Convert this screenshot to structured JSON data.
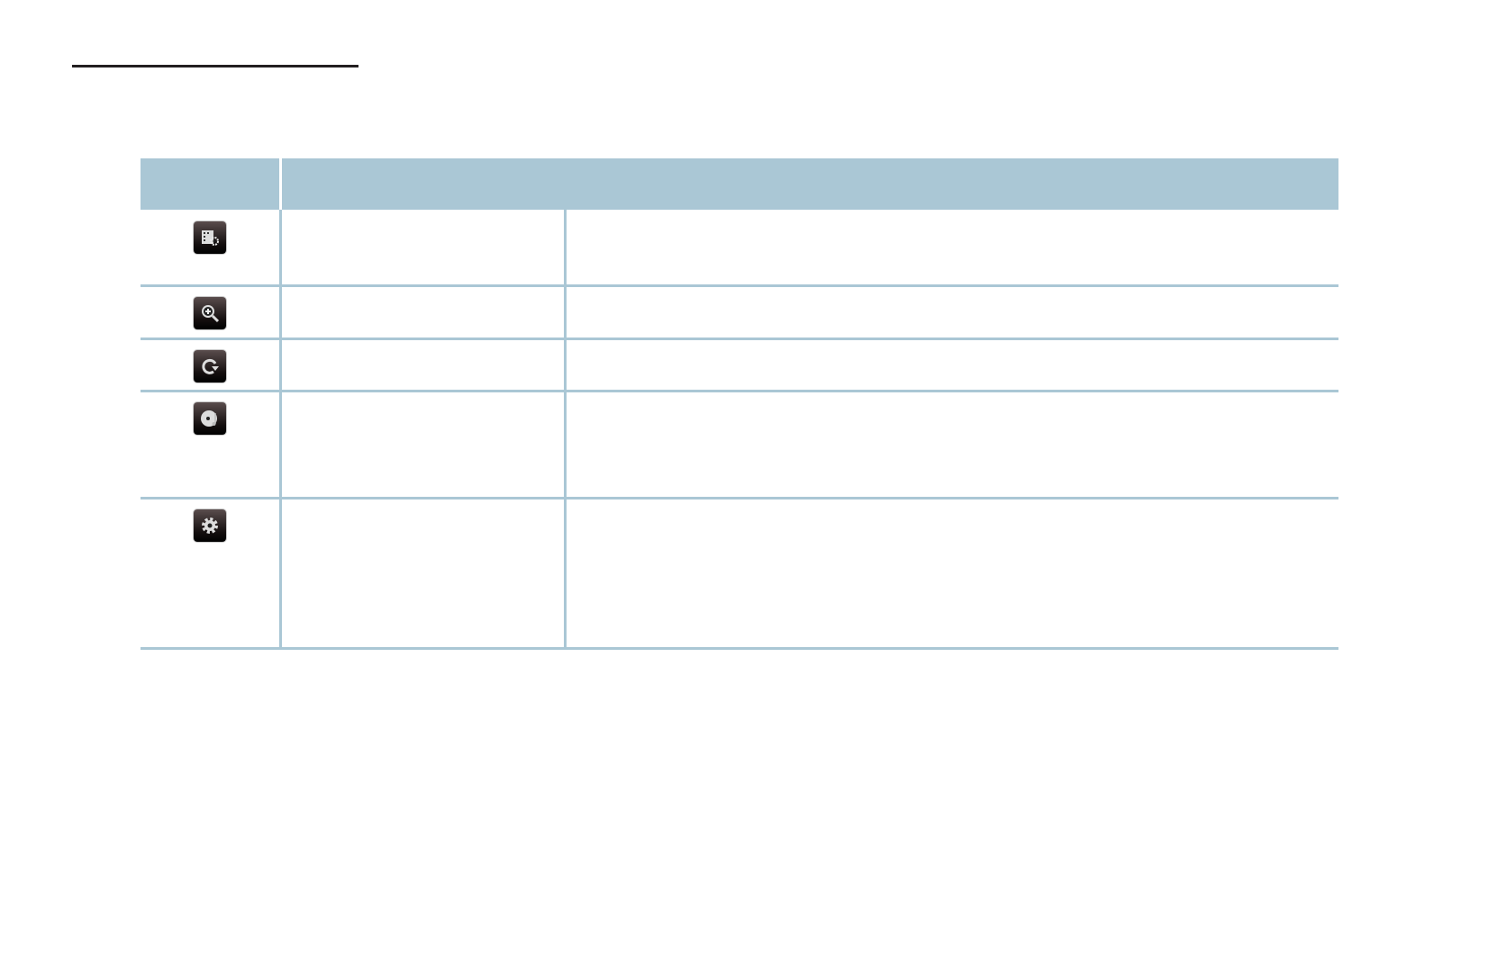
{
  "colors": {
    "header_bg": "#aac7d5",
    "grid": "#aac7d5",
    "rule": "#231f20"
  },
  "rows": [
    {
      "icon": "picture-settings-icon"
    },
    {
      "icon": "zoom-in-icon"
    },
    {
      "icon": "rotate-icon"
    },
    {
      "icon": "music-disc-icon"
    },
    {
      "icon": "settings-gear-icon"
    }
  ]
}
